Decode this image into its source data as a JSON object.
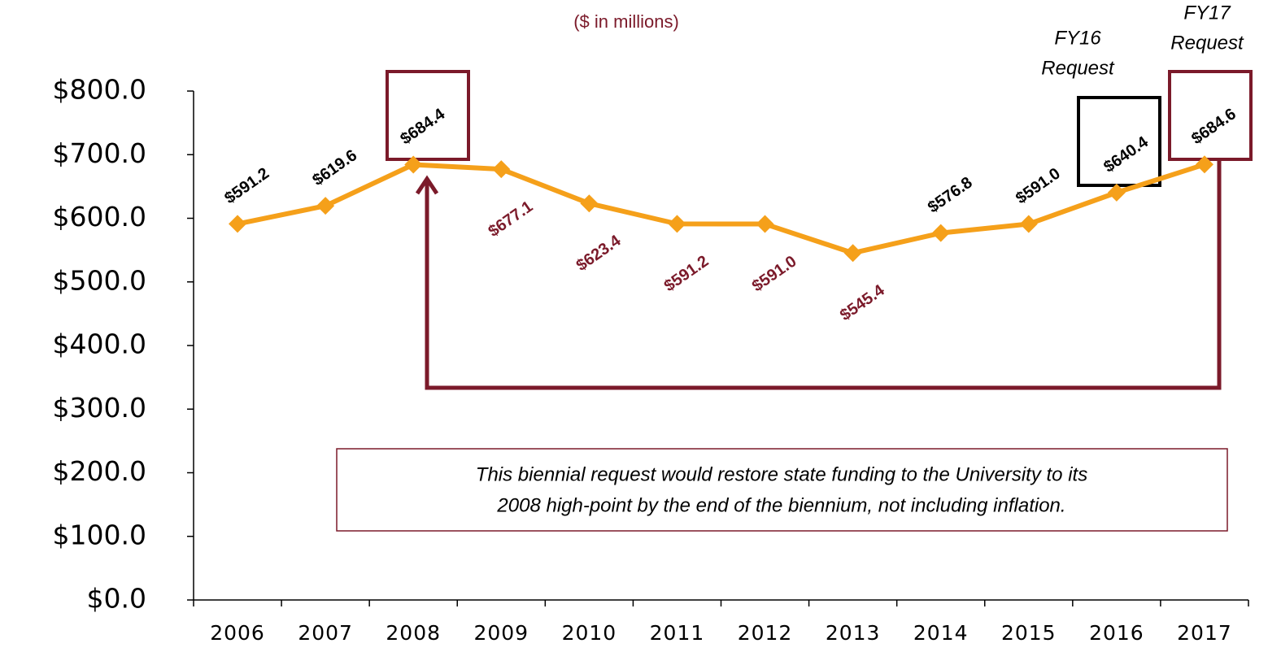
{
  "chart_data": {
    "type": "line",
    "subtitle": "($ in millions)",
    "categories": [
      "2006",
      "2007",
      "2008",
      "2009",
      "2010",
      "2011",
      "2012",
      "2013",
      "2014",
      "2015",
      "2016",
      "2017"
    ],
    "series": [
      {
        "color": "#f5a01a",
        "values": [
          591.2,
          619.6,
          684.4,
          677.1,
          623.4,
          591.2,
          591.0,
          545.4,
          576.8,
          591.0,
          640.4,
          684.6
        ],
        "value_labels": [
          "$591.2",
          "$619.6",
          "$684.4",
          "$677.1",
          "$623.4",
          "$591.2",
          "$591.0",
          "$545.4",
          "$576.8",
          "$591.0",
          "$640.4",
          "$684.6"
        ]
      }
    ],
    "ylim": [
      0,
      800
    ],
    "yticks": [
      {
        "value": 0,
        "label": "$0.0"
      },
      {
        "value": 100,
        "label": "$100.0"
      },
      {
        "value": 200,
        "label": "$200.0"
      },
      {
        "value": 300,
        "label": "$300.0"
      },
      {
        "value": 400,
        "label": "$400.0"
      },
      {
        "value": 500,
        "label": "$500.0"
      },
      {
        "value": 600,
        "label": "$600.0"
      },
      {
        "value": 700,
        "label": "$700.0"
      },
      {
        "value": 800,
        "label": "$800.0"
      }
    ],
    "annotations": [
      "FY16",
      "Request",
      "FY17",
      "Request",
      "This biennial request would restore state funding to the University to its",
      "2008 high-point by the end of the biennium, not including inflation."
    ],
    "grid": false
  }
}
